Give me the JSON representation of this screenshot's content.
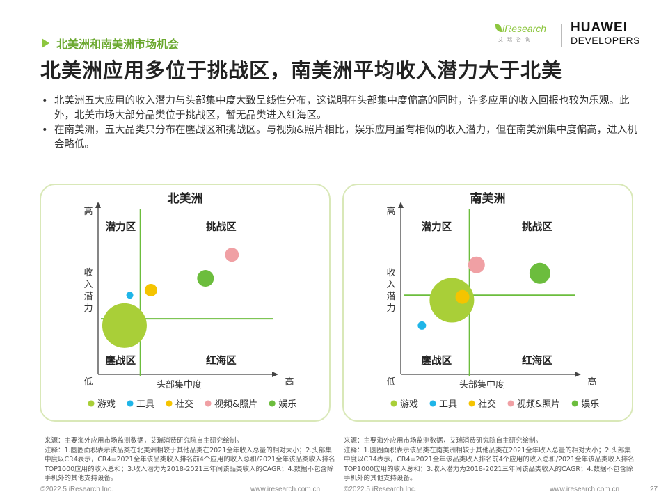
{
  "header": {
    "section_tag": "北美洲和南美洲市场机会",
    "title": "北美洲应用多位于挑战区，南美洲平均收入潜力大于北美"
  },
  "logos": {
    "iresearch": "iResearch",
    "iresearch_sub": "艾瑞咨询",
    "huawei_line1": "HUAWEI",
    "huawei_line2": "DEVELOPERS"
  },
  "bullets": [
    "北美洲五大应用的收入潜力与头部集中度大致呈线性分布，这说明在头部集中度偏高的同时，许多应用的收入回报也较为乐观。此外，北美市场大部分品类位于挑战区，暂无品类进入红海区。",
    "在南美洲，五大品类只分布在鏖战区和挑战区。与视频&照片相比，娱乐应用虽有相似的收入潜力，但在南美洲集中度偏高，进入机会略低。"
  ],
  "chart_data": [
    {
      "type": "bubble",
      "title": "北美洲",
      "xlabel": "头部集中度",
      "ylabel": "收入潜力",
      "x_low": "低",
      "x_high": "高",
      "y_high": "高",
      "xlim": [
        0,
        100
      ],
      "ylim": [
        0,
        100
      ],
      "divider": {
        "x": 24,
        "y": 33
      },
      "quadrants": {
        "top_left": "潜力区",
        "top_right": "挑战区",
        "bottom_left": "鏖战区",
        "bottom_right": "红海区"
      },
      "series": [
        {
          "name": "游戏",
          "color": "#a9cf38",
          "x": 15,
          "y": 29,
          "size": 32
        },
        {
          "name": "工具",
          "color": "#1fb5e8",
          "x": 18,
          "y": 47,
          "size": 5
        },
        {
          "name": "社交",
          "color": "#f5c400",
          "x": 30,
          "y": 50,
          "size": 9
        },
        {
          "name": "视频&照片",
          "color": "#f0a0a4",
          "x": 76,
          "y": 71,
          "size": 10
        },
        {
          "name": "娱乐",
          "color": "#6cbd3d",
          "x": 61,
          "y": 57,
          "size": 12
        }
      ]
    },
    {
      "type": "bubble",
      "title": "南美洲",
      "xlabel": "头部集中度",
      "ylabel": "收入潜力",
      "x_low": "低",
      "x_high": "高",
      "y_high": "高",
      "xlim": [
        0,
        100
      ],
      "ylim": [
        0,
        100
      ],
      "divider": {
        "x": 39,
        "y": 47
      },
      "quadrants": {
        "top_left": "潜力区",
        "top_right": "挑战区",
        "bottom_left": "鏖战区",
        "bottom_right": "红海区"
      },
      "series": [
        {
          "name": "游戏",
          "color": "#a9cf38",
          "x": 29,
          "y": 44,
          "size": 32
        },
        {
          "name": "工具",
          "color": "#1fb5e8",
          "x": 12,
          "y": 29,
          "size": 6
        },
        {
          "name": "社交",
          "color": "#f5c400",
          "x": 35,
          "y": 46,
          "size": 10
        },
        {
          "name": "视频&照片",
          "color": "#f0a0a4",
          "x": 43,
          "y": 65,
          "size": 12
        },
        {
          "name": "娱乐",
          "color": "#6cbd3d",
          "x": 79,
          "y": 60,
          "size": 15
        }
      ]
    }
  ],
  "sources": {
    "north": {
      "line1": "来源：主要海外应用市场监测数据，艾瑞消费研究院自主研究绘制。",
      "line2": "注释：1.圆圈面积表示该品类在北美洲相较于其他品类在2021全年收入总量的相对大小；2.头部集中度以CR4表示，CR4=2021全年该品类收入排名前4个应用的收入总和/2021全年该品类收入排名TOP1000应用的收入总和；3.收入潜力为2018-2021三年间该品类收入的CAGR；4.数据不包含除手机外的其他支持设备。"
    },
    "south": {
      "line1": "来源：主要海外应用市场监测数据，艾瑞消费研究院自主研究绘制。",
      "line2": "注释：1.圆圈面积表示该品类在南美洲相较于其他品类在2021全年收入总量的相对大小；2.头部集中度以CR4表示，CR4=2021全年该品类收入排名前4个应用的收入总和/2021全年该品类收入排名TOP1000应用的收入总和；3.收入潜力为2018-2021三年间该品类收入的CAGR；4.数据不包含除手机外的其他支持设备。"
    }
  },
  "footer": {
    "left_copy_1": "©2022.5 iResearch Inc.",
    "left_url_1": "www.iresearch.com.cn",
    "left_copy_2": "©2022.5 iResearch Inc.",
    "left_url_2": "www.iresearch.com.cn",
    "page_number": "27"
  }
}
